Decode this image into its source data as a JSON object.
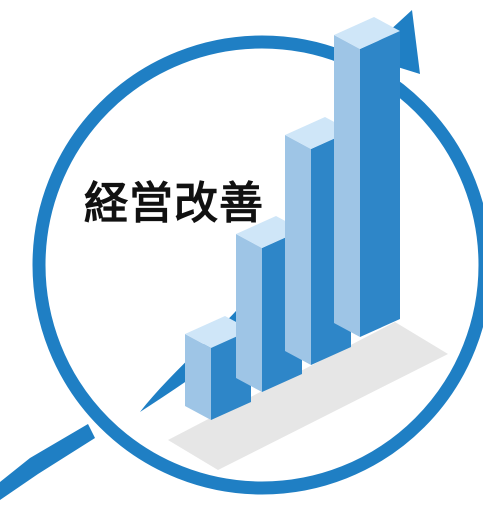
{
  "title": "経営改善",
  "icon": "growth-bar-chart-with-magnifier-and-arrow",
  "colors": {
    "accent_blue": "#1f7fc4",
    "front_face": "#2e86c8",
    "side_face": "#9ec5e6",
    "top_face": "#cfe6f8",
    "floor_shadow": "#e6e6e6",
    "title_text": "#111111"
  },
  "bars": [
    {
      "level": 1
    },
    {
      "level": 2
    },
    {
      "level": 3
    },
    {
      "level": 4
    }
  ]
}
